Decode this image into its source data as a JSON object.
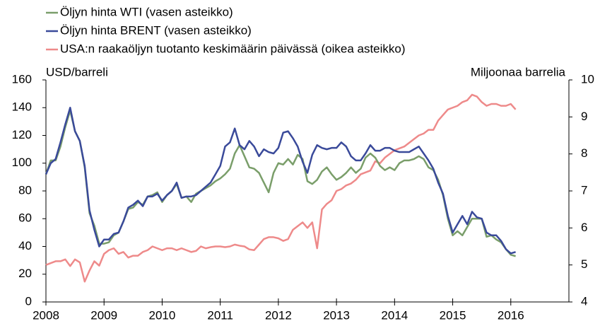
{
  "chart_data": {
    "type": "line",
    "legend_items": [
      "Öljyn hinta WTI (vasen asteikko)",
      "Öljyn hinta BRENT (vasen asteikko)",
      "USA:n raakaöljyn tuotanto keskimäärin päivässä (oikea asteikko)"
    ],
    "y_label": "USD/barreli",
    "y2_label": "Miljoonaa barrelia",
    "legend": "top-left",
    "x": [
      2008,
      2008.083,
      2008.167,
      2008.25,
      2008.333,
      2008.417,
      2008.5,
      2008.583,
      2008.667,
      2008.75,
      2008.833,
      2008.917,
      2009,
      2009.083,
      2009.167,
      2009.25,
      2009.333,
      2009.417,
      2009.5,
      2009.583,
      2009.667,
      2009.75,
      2009.833,
      2009.917,
      2010,
      2010.083,
      2010.167,
      2010.25,
      2010.333,
      2010.417,
      2010.5,
      2010.583,
      2010.667,
      2010.75,
      2010.833,
      2010.917,
      2011,
      2011.083,
      2011.167,
      2011.25,
      2011.333,
      2011.417,
      2011.5,
      2011.583,
      2011.667,
      2011.75,
      2011.833,
      2011.917,
      2012,
      2012.083,
      2012.167,
      2012.25,
      2012.333,
      2012.417,
      2012.5,
      2012.583,
      2012.667,
      2012.75,
      2012.833,
      2012.917,
      2013,
      2013.083,
      2013.167,
      2013.25,
      2013.333,
      2013.417,
      2013.5,
      2013.583,
      2013.667,
      2013.75,
      2013.833,
      2013.917,
      2014,
      2014.083,
      2014.167,
      2014.25,
      2014.333,
      2014.417,
      2014.5,
      2014.583,
      2014.667,
      2014.75,
      2014.833,
      2014.917,
      2015,
      2015.083,
      2015.167,
      2015.25,
      2015.333,
      2015.417,
      2015.5,
      2015.583,
      2015.667,
      2015.75,
      2015.833,
      2015.917,
      2016,
      2016.083
    ],
    "series": [
      {
        "name": "Öljyn hinta WTI (vasen asteikko)",
        "color": "#7a9e6a",
        "values": [
          92,
          102,
          102,
          112,
          126,
          138,
          123,
          116,
          97,
          64,
          55,
          42,
          42,
          43,
          48,
          50,
          58,
          67,
          68,
          72,
          70,
          76,
          77,
          79,
          72,
          77,
          80,
          85,
          75,
          76,
          72,
          78,
          80,
          82,
          84,
          87,
          89,
          92,
          96,
          107,
          113,
          105,
          97,
          96,
          93,
          86,
          79,
          93,
          100,
          99,
          103,
          99,
          106,
          103,
          87,
          85,
          88,
          94,
          97,
          92,
          88,
          90,
          93,
          97,
          93,
          96,
          104,
          107,
          104,
          98,
          95,
          97,
          95,
          100,
          102,
          102,
          103,
          105,
          103,
          97,
          95,
          88,
          77,
          60,
          48,
          51,
          48,
          54,
          60,
          60,
          60,
          47,
          48,
          45,
          43,
          38,
          34,
          33
        ]
      },
      {
        "name": "Öljyn hinta BRENT (vasen asteikko)",
        "color": "#3a4a9a",
        "values": [
          92,
          100,
          103,
          115,
          128,
          140,
          123,
          116,
          98,
          66,
          52,
          40,
          45,
          45,
          49,
          50,
          58,
          68,
          70,
          73,
          69,
          76,
          76,
          78,
          73,
          77,
          80,
          86,
          75,
          76,
          76,
          77,
          80,
          83,
          86,
          92,
          98,
          112,
          115,
          125,
          113,
          110,
          116,
          112,
          105,
          110,
          108,
          107,
          111,
          122,
          123,
          118,
          112,
          101,
          93,
          106,
          113,
          111,
          110,
          111,
          111,
          115,
          112,
          105,
          102,
          102,
          107,
          113,
          109,
          109,
          111,
          111,
          109,
          108,
          108,
          108,
          110,
          112,
          107,
          102,
          96,
          86,
          78,
          62,
          50,
          56,
          62,
          56,
          65,
          61,
          60,
          50,
          48,
          48,
          44,
          38,
          35,
          36
        ]
      },
      {
        "name": "USA:n raakaöljyn tuotanto keskimäärin päivässä (oikea asteikko)",
        "color": "#ee8a8a",
        "axis": "y2",
        "values": [
          5.0,
          5.05,
          5.1,
          5.1,
          5.15,
          4.97,
          5.15,
          5.07,
          4.55,
          4.85,
          5.1,
          4.98,
          5.3,
          5.4,
          5.45,
          5.3,
          5.35,
          5.2,
          5.25,
          5.25,
          5.35,
          5.4,
          5.5,
          5.45,
          5.4,
          5.45,
          5.45,
          5.4,
          5.45,
          5.4,
          5.35,
          5.38,
          5.5,
          5.45,
          5.48,
          5.5,
          5.5,
          5.48,
          5.5,
          5.55,
          5.52,
          5.5,
          5.42,
          5.4,
          5.55,
          5.7,
          5.75,
          5.75,
          5.72,
          5.65,
          5.7,
          5.95,
          6.05,
          6.15,
          6.0,
          6.15,
          5.45,
          6.5,
          6.65,
          6.75,
          7.0,
          7.05,
          7.15,
          7.2,
          7.3,
          7.45,
          7.5,
          7.55,
          7.8,
          7.75,
          7.9,
          8.0,
          8.1,
          8.15,
          8.2,
          8.3,
          8.4,
          8.5,
          8.55,
          8.65,
          8.65,
          8.9,
          9.05,
          9.2,
          9.25,
          9.3,
          9.4,
          9.45,
          9.6,
          9.55,
          9.4,
          9.3,
          9.35,
          9.35,
          9.3,
          9.3,
          9.35,
          9.2
        ]
      }
    ],
    "xlim": [
      2008,
      2017
    ],
    "xticks": [
      2008,
      2009,
      2010,
      2011,
      2012,
      2013,
      2014,
      2015,
      2016
    ],
    "ylim": [
      0,
      160
    ],
    "yticks": [
      0,
      20,
      40,
      60,
      80,
      100,
      120,
      140,
      160
    ],
    "y2lim": [
      4,
      10
    ],
    "y2ticks": [
      4,
      5,
      6,
      7,
      8,
      9,
      10
    ],
    "grid": false
  }
}
